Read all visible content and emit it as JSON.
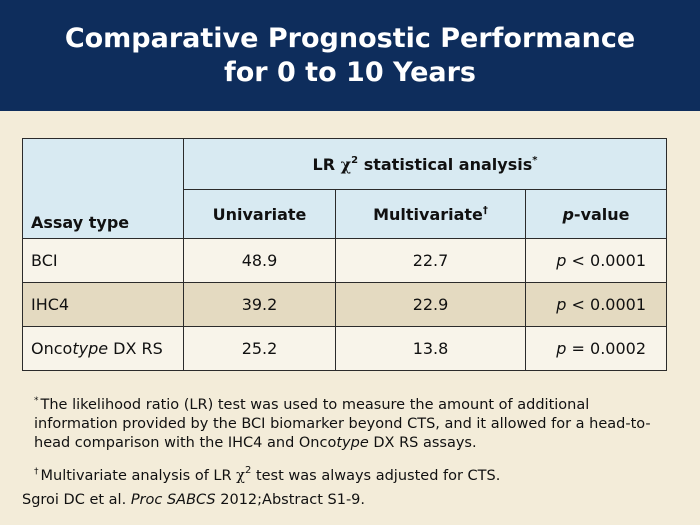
{
  "title": {
    "line1": "Comparative Prognostic Performance",
    "line2": "for 0 to 10 Years"
  },
  "table": {
    "group_header": {
      "prefix": "LR ",
      "chi": "χ",
      "chi_sup": "2",
      "suffix": " statistical analysis",
      "marker": "*"
    },
    "columns": {
      "assay": "Assay type",
      "univariate": "Univariate",
      "multivariate": "Multivariate",
      "multivariate_marker": "†",
      "p_italic": "p",
      "p_rest": "-value"
    },
    "rows": [
      {
        "assay_pre": "BCI",
        "assay_italic": "",
        "assay_post": "",
        "univariate": "48.9",
        "multivariate": "22.7",
        "p_italic": "p",
        "p_value": " < 0.0001"
      },
      {
        "assay_pre": "IHC4",
        "assay_italic": "",
        "assay_post": "",
        "univariate": "39.2",
        "multivariate": "22.9",
        "p_italic": "p",
        "p_value": " < 0.0001"
      },
      {
        "assay_pre": "Onco",
        "assay_italic": "type",
        "assay_post": " DX RS",
        "univariate": "25.2",
        "multivariate": "13.8",
        "p_italic": "p",
        "p_value": " = 0.0002"
      }
    ]
  },
  "footnotes": {
    "note1_marker": "*",
    "note1_pre": "The likelihood ratio (LR) test was used to measure the amount of additional information provided by the BCI biomarker beyond CTS, and it allowed for a head-to-head comparison with the IHC4 and Onco",
    "note1_italic": "type",
    "note1_post": " DX RS assays.",
    "note2_marker": "†",
    "note2_pre": "Multivariate analysis of LR ",
    "note2_chi": "χ",
    "note2_sup": "2",
    "note2_post": " test was always adjusted for CTS."
  },
  "citation": {
    "pre": "Sgroi DC et al. ",
    "italic": "Proc SABCS",
    "post": " 2012;Abstract S1-9."
  },
  "colors": {
    "title_bg": "#0e2d5c",
    "page_bg": "#f3ecd9",
    "header_bg": "#d8eaf2",
    "alt_row_bg": "#e4dac1"
  }
}
